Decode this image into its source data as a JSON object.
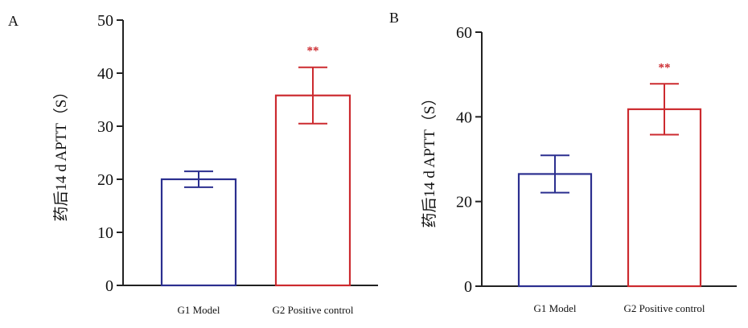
{
  "chart_data": [
    {
      "type": "bar",
      "panel_label": "A",
      "ylabel": "药后14 d APTT（S）",
      "ylim": [
        0,
        50
      ],
      "yticks": [
        0,
        10,
        20,
        30,
        40,
        50
      ],
      "categories": [
        "G1 Model",
        "G2 Positive control"
      ],
      "values": [
        20,
        35.8
      ],
      "errors": [
        1.5,
        5.3
      ],
      "significance": [
        "",
        "**"
      ],
      "colors": [
        "#2b2f8f",
        "#cc2a2f"
      ],
      "grid": false,
      "legend": "none"
    },
    {
      "type": "bar",
      "panel_label": "B",
      "ylabel": "药后14 d APTT（S）",
      "ylim": [
        0,
        60
      ],
      "yticks": [
        0,
        20,
        40,
        60
      ],
      "categories": [
        "G1 Model",
        "G2 Positive control"
      ],
      "values": [
        26.5,
        41.8
      ],
      "errors": [
        4.4,
        6
      ],
      "significance": [
        "",
        "**"
      ],
      "colors": [
        "#2b2f8f",
        "#cc2a2f"
      ],
      "grid": false,
      "legend": "none"
    }
  ]
}
